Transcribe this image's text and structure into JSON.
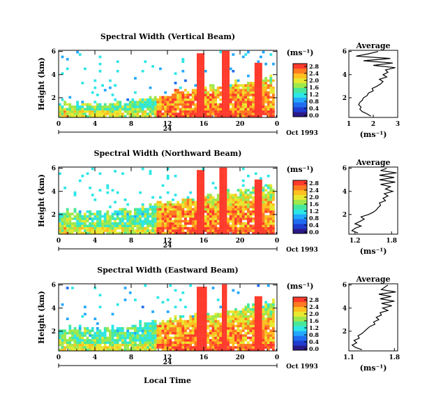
{
  "chart_data": {
    "type": "heatmap",
    "common": {
      "ylabel": "Height (km)",
      "x_ticks": [
        "0",
        "4",
        "8",
        "12",
        "16",
        "20",
        "0"
      ],
      "y_ticks": [
        "2",
        "4",
        "6"
      ],
      "date_bar_label": "24",
      "date_label": "Oct 1993",
      "xlabel": "Local Time",
      "colorbar_unit": "(ms⁻¹)",
      "colorbar_ticks": [
        "2.8",
        "2.4",
        "2.0",
        "1.6",
        "1.2",
        "0.8",
        "0.4",
        "0.0"
      ],
      "colormap": [
        "#2a1a88",
        "#1d3cd0",
        "#1f6cf0",
        "#22a8ff",
        "#2de6e6",
        "#48e89a",
        "#9ee84c",
        "#e8e830",
        "#ffc020",
        "#ff7a20",
        "#ff3a2c"
      ],
      "avg_title": "Average",
      "avg_xlabel": "(ms⁻¹)"
    },
    "panels": [
      {
        "title": "Spectral Width (Vertical Beam)",
        "colorbar_ticks": [
          "2.8",
          "2.4",
          "2.0",
          "1.6",
          "1.2",
          "0.8",
          "0.4",
          "0.0"
        ],
        "avg_xticks": [
          "1",
          "2",
          "3"
        ],
        "avg_xlim": [
          1,
          3
        ],
        "avg_profile": {
          "height_km": [
            0.4,
            0.6,
            0.8,
            1.0,
            1.2,
            1.4,
            1.6,
            1.8,
            2.0,
            2.2,
            2.4,
            2.6,
            2.8,
            3.0,
            3.2,
            3.4,
            3.6,
            3.8,
            4.0,
            4.2,
            4.4,
            4.6,
            4.8,
            5.0,
            5.2,
            5.4,
            5.6,
            5.8,
            6.0
          ],
          "width_ms": [
            1.9,
            1.75,
            1.55,
            1.45,
            1.5,
            1.4,
            1.45,
            1.55,
            1.6,
            1.75,
            1.8,
            2.0,
            1.95,
            2.15,
            2.3,
            2.4,
            2.25,
            2.55,
            2.4,
            2.6,
            2.5,
            2.9,
            2.0,
            2.8,
            1.6,
            2.7,
            1.3,
            1.8,
            2.2
          ]
        }
      },
      {
        "title": "Spectral Width (Northward Beam)",
        "colorbar_ticks": [
          "2.8",
          "2.4",
          "2.0",
          "1.6",
          "1.2",
          "0.8",
          "0.4",
          "0.0"
        ],
        "avg_xticks": [
          "1.2",
          "1.8"
        ],
        "avg_xlim": [
          1.1,
          1.9
        ],
        "avg_profile": {
          "height_km": [
            0.4,
            0.6,
            0.8,
            1.0,
            1.2,
            1.4,
            1.6,
            1.8,
            2.0,
            2.2,
            2.4,
            2.6,
            2.8,
            3.0,
            3.2,
            3.4,
            3.6,
            3.8,
            4.0,
            4.2,
            4.4,
            4.6,
            4.8,
            5.0,
            5.2,
            5.4,
            5.6,
            5.8,
            6.0
          ],
          "width_ms": [
            1.25,
            1.15,
            1.2,
            1.3,
            1.2,
            1.28,
            1.35,
            1.3,
            1.42,
            1.5,
            1.55,
            1.58,
            1.62,
            1.6,
            1.7,
            1.66,
            1.74,
            1.68,
            1.82,
            1.7,
            1.78,
            1.62,
            1.86,
            1.6,
            1.84,
            1.6,
            1.88,
            1.62,
            1.72
          ]
        }
      },
      {
        "title": "Spectral Width (Eastward Beam)",
        "colorbar_ticks": [
          "2.8",
          "2.4",
          "2.0",
          "1.6",
          "1.2",
          "0.8",
          "0.4",
          "0.0"
        ],
        "avg_xticks": [
          "1.1",
          "1.8"
        ],
        "avg_xlim": [
          1.1,
          1.85
        ],
        "avg_profile": {
          "height_km": [
            0.4,
            0.6,
            0.8,
            1.0,
            1.2,
            1.4,
            1.6,
            1.8,
            2.0,
            2.2,
            2.4,
            2.6,
            2.8,
            3.0,
            3.2,
            3.4,
            3.6,
            3.8,
            4.0,
            4.2,
            4.4,
            4.6,
            4.8,
            5.0,
            5.2,
            5.4,
            5.6,
            5.8,
            6.0
          ],
          "width_ms": [
            1.3,
            1.2,
            1.15,
            1.22,
            1.18,
            1.26,
            1.24,
            1.3,
            1.34,
            1.38,
            1.42,
            1.5,
            1.48,
            1.56,
            1.52,
            1.6,
            1.58,
            1.7,
            1.62,
            1.76,
            1.6,
            1.8,
            1.58,
            1.75,
            1.56,
            1.82,
            1.6,
            1.65,
            1.7
          ]
        }
      }
    ]
  }
}
